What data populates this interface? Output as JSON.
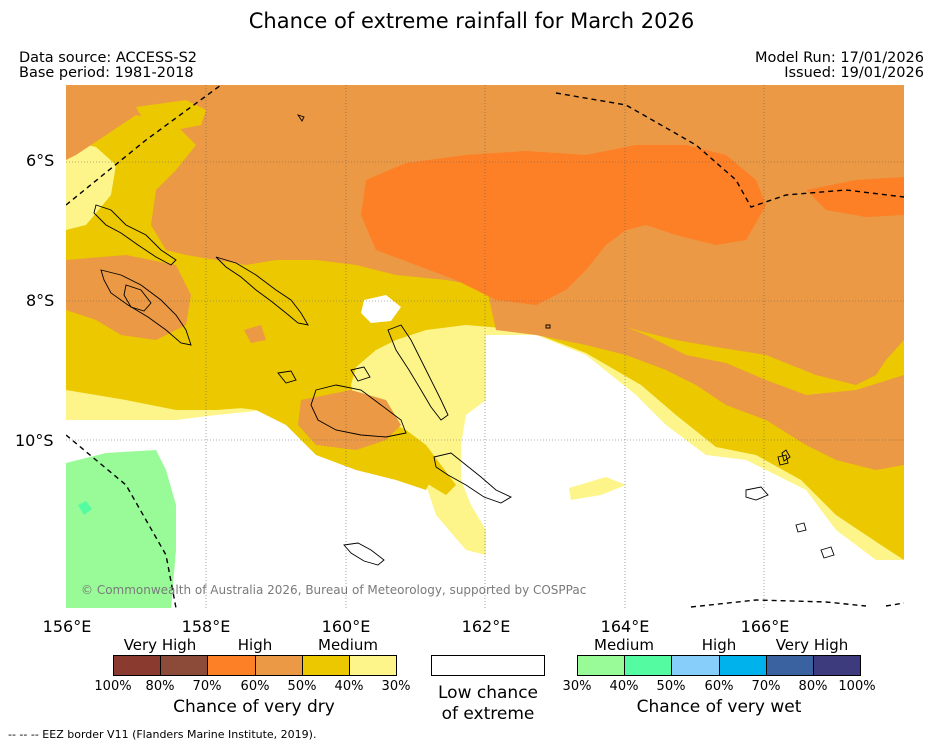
{
  "title": "Chance of extreme rainfall for March 2026",
  "header": {
    "data_source": "Data source: ACCESS-S2",
    "base_period": "Base period: 1981-2018",
    "model_run": "Model Run: 17/01/2026",
    "issued": "Issued: 19/01/2026"
  },
  "map": {
    "latitude_labels": [
      "6°S",
      "8°S",
      "10°S"
    ],
    "longitude_labels": [
      "156°E",
      "158°E",
      "160°E",
      "162°E",
      "164°E",
      "166°E"
    ],
    "credit": "© Commonwealth of Australia 2026, Bureau of Meteorology, supported by COSPPac",
    "colors": {
      "very_dry_80_100": "#8b3a2f",
      "very_dry_70_80": "#8c4a38",
      "high_dry_60_70": "#fd7f26",
      "high_dry_50_60": "#eb9944",
      "medium_dry_40_50": "#ebc800",
      "medium_dry_30_40": "#fdf58a",
      "low": "#ffffff",
      "medium_wet_30_40": "#98fb98",
      "medium_wet_40_50": "#54fba0",
      "high_wet_50_60": "#88cefa",
      "high_wet_60_70": "#00b2eb",
      "very_high_wet_70_80": "#3a61a0",
      "very_high_wet_80_100": "#3d3a7d"
    }
  },
  "legend": {
    "dry": {
      "category_labels": [
        "Very High",
        "High",
        "Medium"
      ],
      "ticks": [
        "100%",
        "80%",
        "70%",
        "60%",
        "50%",
        "40%",
        "30%"
      ],
      "title": "Chance of very dry"
    },
    "low": {
      "title_line1": "Low chance",
      "title_line2": "of extreme"
    },
    "wet": {
      "category_labels": [
        "Medium",
        "High",
        "Very High"
      ],
      "ticks": [
        "30%",
        "40%",
        "50%",
        "60%",
        "70%",
        "80%",
        "100%"
      ],
      "title": "Chance of very wet"
    },
    "eez_note": "-- -- -- EEZ border V11 (Flanders Marine Institute, 2019)."
  }
}
